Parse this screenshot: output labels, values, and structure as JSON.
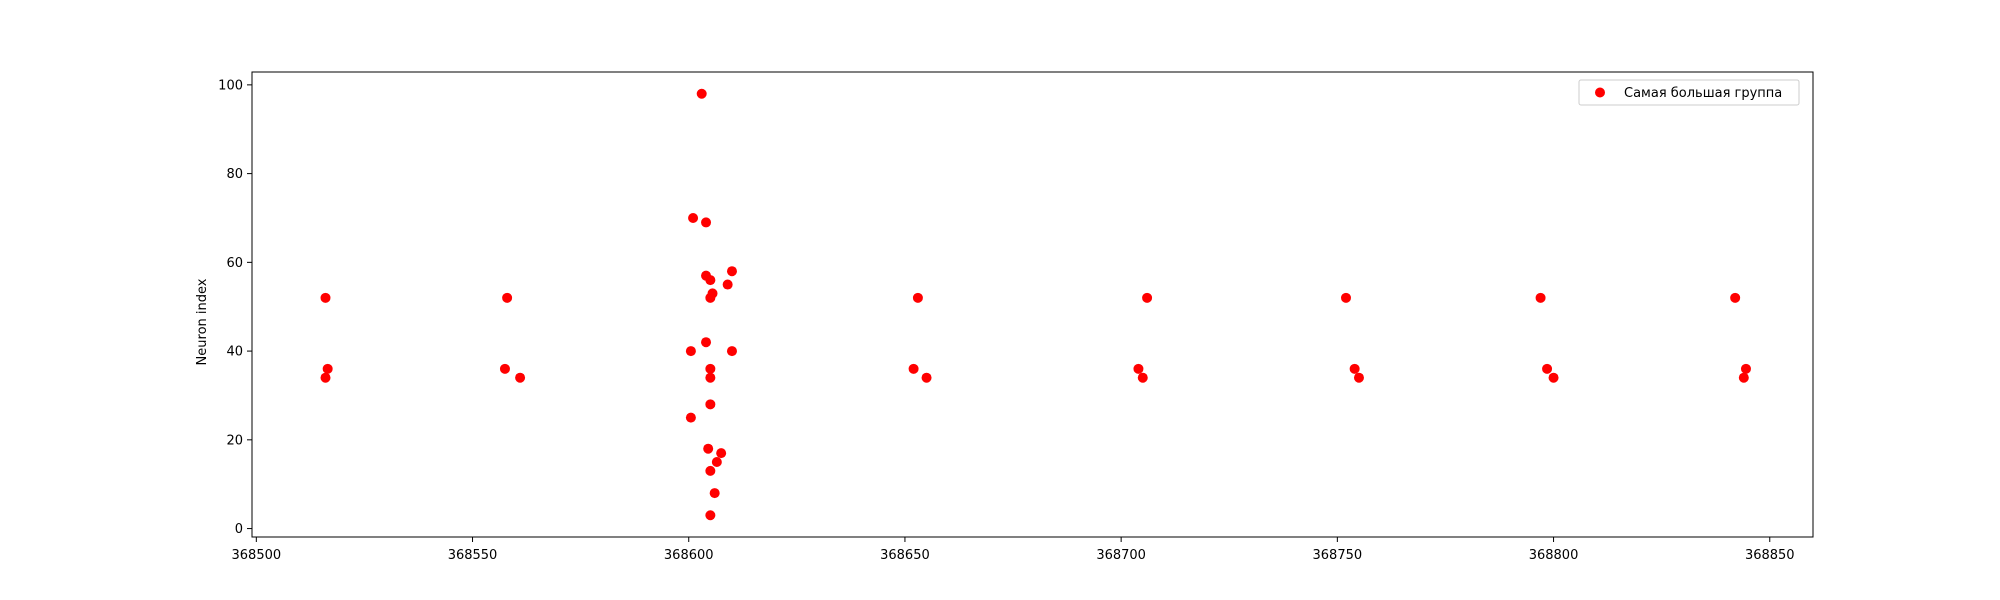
{
  "chart_data": {
    "type": "scatter",
    "title": "",
    "xlabel": "",
    "ylabel": "Neuron index",
    "xlim": [
      368499,
      368860
    ],
    "ylim": [
      -1.9,
      102.9
    ],
    "xticks": [
      368500,
      368550,
      368600,
      368650,
      368700,
      368750,
      368800,
      368850
    ],
    "yticks": [
      0,
      20,
      40,
      60,
      80,
      100
    ],
    "grid": false,
    "legend_position": "top-right",
    "series": [
      {
        "name": "Самая большая группа",
        "color": "#ff0000",
        "marker": "circle",
        "points": [
          {
            "x": 368516,
            "y": 52
          },
          {
            "x": 368516.5,
            "y": 36
          },
          {
            "x": 368516,
            "y": 34
          },
          {
            "x": 368558,
            "y": 52
          },
          {
            "x": 368557.5,
            "y": 36
          },
          {
            "x": 368561,
            "y": 34
          },
          {
            "x": 368603,
            "y": 98
          },
          {
            "x": 368601,
            "y": 70
          },
          {
            "x": 368604,
            "y": 69
          },
          {
            "x": 368610,
            "y": 58
          },
          {
            "x": 368604,
            "y": 57
          },
          {
            "x": 368605,
            "y": 56
          },
          {
            "x": 368609,
            "y": 55
          },
          {
            "x": 368605.5,
            "y": 53
          },
          {
            "x": 368605,
            "y": 52
          },
          {
            "x": 368604,
            "y": 42
          },
          {
            "x": 368600.5,
            "y": 40
          },
          {
            "x": 368610,
            "y": 40
          },
          {
            "x": 368605,
            "y": 36
          },
          {
            "x": 368605,
            "y": 34
          },
          {
            "x": 368605,
            "y": 28
          },
          {
            "x": 368600.5,
            "y": 25
          },
          {
            "x": 368604.5,
            "y": 18
          },
          {
            "x": 368607.5,
            "y": 17
          },
          {
            "x": 368606.5,
            "y": 15
          },
          {
            "x": 368605,
            "y": 13
          },
          {
            "x": 368606,
            "y": 8
          },
          {
            "x": 368605,
            "y": 3
          },
          {
            "x": 368653,
            "y": 52
          },
          {
            "x": 368652,
            "y": 36
          },
          {
            "x": 368655,
            "y": 34
          },
          {
            "x": 368706,
            "y": 52
          },
          {
            "x": 368704,
            "y": 36
          },
          {
            "x": 368705,
            "y": 34
          },
          {
            "x": 368752,
            "y": 52
          },
          {
            "x": 368754,
            "y": 36
          },
          {
            "x": 368755,
            "y": 34
          },
          {
            "x": 368797,
            "y": 52
          },
          {
            "x": 368798.5,
            "y": 36
          },
          {
            "x": 368800,
            "y": 34
          },
          {
            "x": 368842,
            "y": 52
          },
          {
            "x": 368844.5,
            "y": 36
          },
          {
            "x": 368844,
            "y": 34
          }
        ]
      }
    ]
  }
}
